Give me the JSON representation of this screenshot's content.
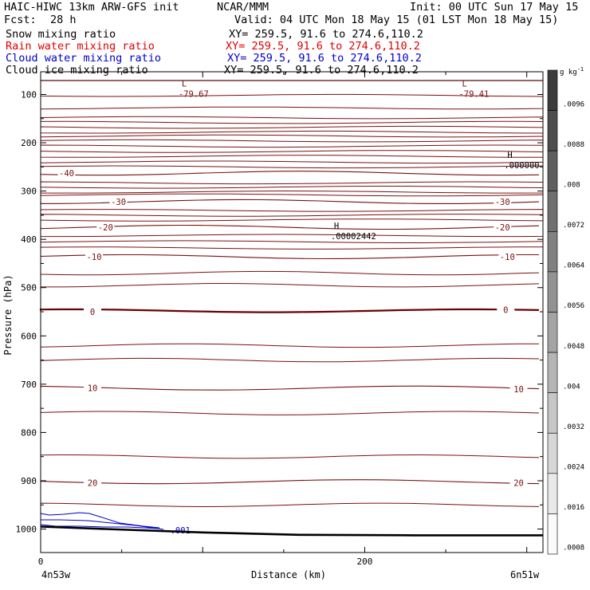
{
  "header": {
    "line1_left": "HAIC-HIWC 13km ARW-GFS init",
    "line1_mid": "NCAR/MMM",
    "line1_right": "Init: 00 UTC Sun 17 May 15",
    "line2_left": "Fcst:",
    "line2_fcst": "28 h",
    "line2_right": "Valid: 04 UTC Mon 18 May 15 (01 LST Mon 18 May 15)"
  },
  "fields": [
    {
      "name": "Snow mixing ratio",
      "xy": "XY= 259.5, 91.6 to 274.6,110.2",
      "color": "#000000"
    },
    {
      "name": "Rain water mixing ratio",
      "xy": "XY= 259.5, 91.6 to 274.6,110.2",
      "color": "#e00000"
    },
    {
      "name": "Cloud water mixing ratio",
      "xy": "XY= 259.5, 91.6 to 274.6,110.2",
      "color": "#0000c8"
    },
    {
      "name": "Cloud ice mixing ratio",
      "xy": "XY= 259.5, 91.6 to 274.6,110.2",
      "color": "#000000"
    }
  ],
  "chart_data": {
    "type": "contour",
    "ylabel": "Pressure (hPa)",
    "xlabel": "Distance (km)",
    "x_start_label": "4n53w",
    "x_end_label": "6n51w",
    "xlim": [
      0,
      310
    ],
    "ylim": [
      1050,
      50
    ],
    "x_ticks": [
      0,
      200
    ],
    "y_ticks": [
      100,
      200,
      300,
      400,
      500,
      600,
      700,
      800,
      900,
      1000
    ],
    "colorbar": {
      "unit": "g kg",
      "unit_exp": "-1",
      "labels": [
        ".0096",
        ".0088",
        ".008",
        ".0072",
        ".0064",
        ".0056",
        ".0048",
        ".004",
        ".0032",
        ".0024",
        ".0016",
        ".0008"
      ]
    },
    "temperature_contours": [
      {
        "value": -40,
        "pressure": 263
      },
      {
        "value": -30,
        "pressure": 322
      },
      {
        "value": -20,
        "pressure": 375
      },
      {
        "value": -10,
        "pressure": 436
      },
      {
        "value": 0,
        "pressure": 548
      },
      {
        "value": 10,
        "pressure": 708
      },
      {
        "value": 20,
        "pressure": 902
      }
    ],
    "contour_labels": [
      {
        "text": "-40",
        "x": 16,
        "pressure": 263
      },
      {
        "text": "-30",
        "x": 48,
        "pressure": 322
      },
      {
        "text": "-30",
        "x": 285,
        "pressure": 322
      },
      {
        "text": "-20",
        "x": 40,
        "pressure": 375
      },
      {
        "text": "-20",
        "x": 285,
        "pressure": 375
      },
      {
        "text": "-10",
        "x": 33,
        "pressure": 436
      },
      {
        "text": "-10",
        "x": 288,
        "pressure": 436
      },
      {
        "text": "0",
        "x": 32,
        "pressure": 550
      },
      {
        "text": "0",
        "x": 287,
        "pressure": 546
      },
      {
        "text": "10",
        "x": 32,
        "pressure": 708
      },
      {
        "text": "10",
        "x": 295,
        "pressure": 710
      },
      {
        "text": "20",
        "x": 32,
        "pressure": 904
      },
      {
        "text": "20",
        "x": 295,
        "pressure": 904
      }
    ],
    "extrema": [
      {
        "type": "L",
        "value": "-79.67",
        "x": 89,
        "pressure": 90
      },
      {
        "type": "L",
        "value": "-79.41",
        "x": 262,
        "pressure": 90
      },
      {
        "type": "H",
        "value": ".00002442",
        "x": 183,
        "pressure": 385
      },
      {
        "type": "H",
        "value": ".000000",
        "x": 290,
        "pressure": 238
      }
    ],
    "cloud_water_label": {
      "text": ".001",
      "x": 80,
      "pressure": 1002
    },
    "ground_pressure": [
      {
        "x": 0,
        "p": 995
      },
      {
        "x": 40,
        "p": 1000
      },
      {
        "x": 100,
        "p": 1007
      },
      {
        "x": 160,
        "p": 1012
      },
      {
        "x": 230,
        "p": 1013
      },
      {
        "x": 310,
        "p": 1013
      }
    ]
  }
}
